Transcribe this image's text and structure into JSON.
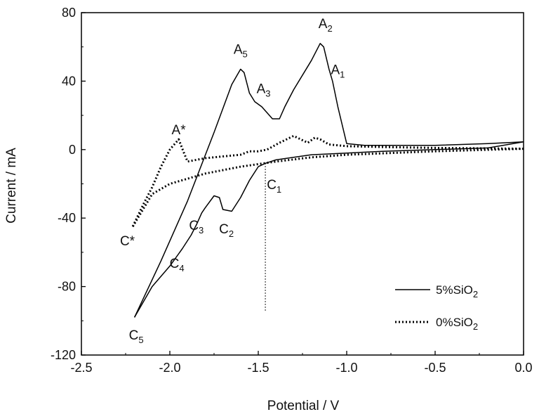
{
  "chart_data": {
    "type": "line",
    "xlabel": "Potential / V",
    "ylabel": "Current / mA",
    "xlim": [
      -2.5,
      0.0
    ],
    "ylim": [
      -120,
      80
    ],
    "xticks": [
      "-2.5",
      "-2.0",
      "-1.5",
      "-1.0",
      "-0.5",
      "0.0"
    ],
    "yticks": [
      "80",
      "40",
      "0",
      "-40",
      "-80",
      "-120"
    ],
    "xtick_values": [
      -2.5,
      -2.0,
      -1.5,
      -1.0,
      -0.5,
      0.0
    ],
    "ytick_values": [
      80,
      40,
      0,
      -40,
      -80,
      -120
    ],
    "grid": false,
    "legend_position": "bottom-right",
    "series": [
      {
        "name": "5%SiO2",
        "name_base": "5%SiO",
        "name_sub": "2",
        "style": "solid",
        "color": "#000000",
        "segments": [
          {
            "x": [
              0.0,
              -0.2,
              -0.5,
              -0.7,
              -0.9,
              -1.0,
              -1.05,
              -1.08,
              -1.1,
              -1.13,
              -1.15,
              -1.2,
              -1.3,
              -1.35,
              -1.38,
              -1.42,
              -1.48,
              -1.52,
              -1.55,
              -1.58,
              -1.6,
              -1.65,
              -1.75,
              -1.9,
              -2.05,
              -2.2
            ],
            "y": [
              4.5,
              3.5,
              2.5,
              2.5,
              2.5,
              3.5,
              25,
              40,
              47,
              60,
              62,
              52,
              35,
              25,
              18,
              18,
              25,
              28,
              33,
              45,
              47,
              38,
              10,
              -30,
              -65,
              -98
            ]
          },
          {
            "x": [
              -2.2,
              -2.1,
              -2.0,
              -1.93,
              -1.88,
              -1.85,
              -1.82,
              -1.8,
              -1.75,
              -1.72,
              -1.7,
              -1.65,
              -1.6,
              -1.55,
              -1.5,
              -1.46,
              -1.4,
              -1.2,
              -1.0,
              -0.8,
              -0.5,
              -0.2,
              0.0
            ],
            "y": [
              -98,
              -80,
              -68,
              -58,
              -50,
              -44,
              -37,
              -34,
              -27,
              -28,
              -35,
              -36,
              -28,
              -18,
              -10,
              -8,
              -6,
              -3,
              -2,
              -1,
              0,
              1,
              4.5
            ]
          }
        ]
      },
      {
        "name": "0%SiO2",
        "name_base": "0%SiO",
        "name_sub": "2",
        "style": "dotted",
        "color": "#000000",
        "segments": [
          {
            "x": [
              0.0,
              -0.5,
              -0.8,
              -1.0,
              -1.1,
              -1.15,
              -1.18,
              -1.22,
              -1.26,
              -1.3,
              -1.38,
              -1.45,
              -1.5,
              -1.55,
              -1.6,
              -1.7,
              -1.8,
              -1.9,
              -1.92,
              -1.95,
              -2.0,
              -2.05,
              -2.1,
              -2.15,
              -2.21
            ],
            "y": [
              0.5,
              1.0,
              1.5,
              2.0,
              3.0,
              6.0,
              7.0,
              4.0,
              6.0,
              8.0,
              4.0,
              0.0,
              -1.0,
              -1.0,
              -3.0,
              -4.0,
              -5.0,
              -7.0,
              -2.0,
              6.0,
              0.0,
              -10.0,
              -22.0,
              -32.0,
              -45.0
            ]
          },
          {
            "x": [
              -2.21,
              -2.1,
              -2.0,
              -1.8,
              -1.6,
              -1.4,
              -1.2,
              -1.0,
              -0.5,
              0.0
            ],
            "y": [
              -45.0,
              -26.0,
              -20.0,
              -14.0,
              -10.0,
              -7.0,
              -4.5,
              -3.0,
              -1.0,
              0.5
            ]
          }
        ]
      }
    ],
    "annotations": [
      {
        "label": "A",
        "sub": "2",
        "x": -1.12,
        "y": 71
      },
      {
        "label": "A",
        "sub": "1",
        "x": -1.05,
        "y": 44
      },
      {
        "label": "A",
        "sub": "5",
        "x": -1.6,
        "y": 56
      },
      {
        "label": "A",
        "sub": "3",
        "x": -1.47,
        "y": 33
      },
      {
        "label": "A*",
        "sub": "",
        "x": -1.95,
        "y": 9
      },
      {
        "label": "C",
        "sub": "1",
        "x": -1.41,
        "y": -23
      },
      {
        "label": "C",
        "sub": "2",
        "x": -1.68,
        "y": -49
      },
      {
        "label": "C",
        "sub": "3",
        "x": -1.85,
        "y": -47
      },
      {
        "label": "C",
        "sub": "4",
        "x": -1.96,
        "y": -69
      },
      {
        "label": "C*",
        "sub": "",
        "x": -2.24,
        "y": -56
      },
      {
        "label": "C",
        "sub": "5",
        "x": -2.19,
        "y": -111
      }
    ],
    "reference_line": {
      "x": -1.46,
      "y_from": -8,
      "y_to": -94,
      "style": "dotted"
    }
  }
}
